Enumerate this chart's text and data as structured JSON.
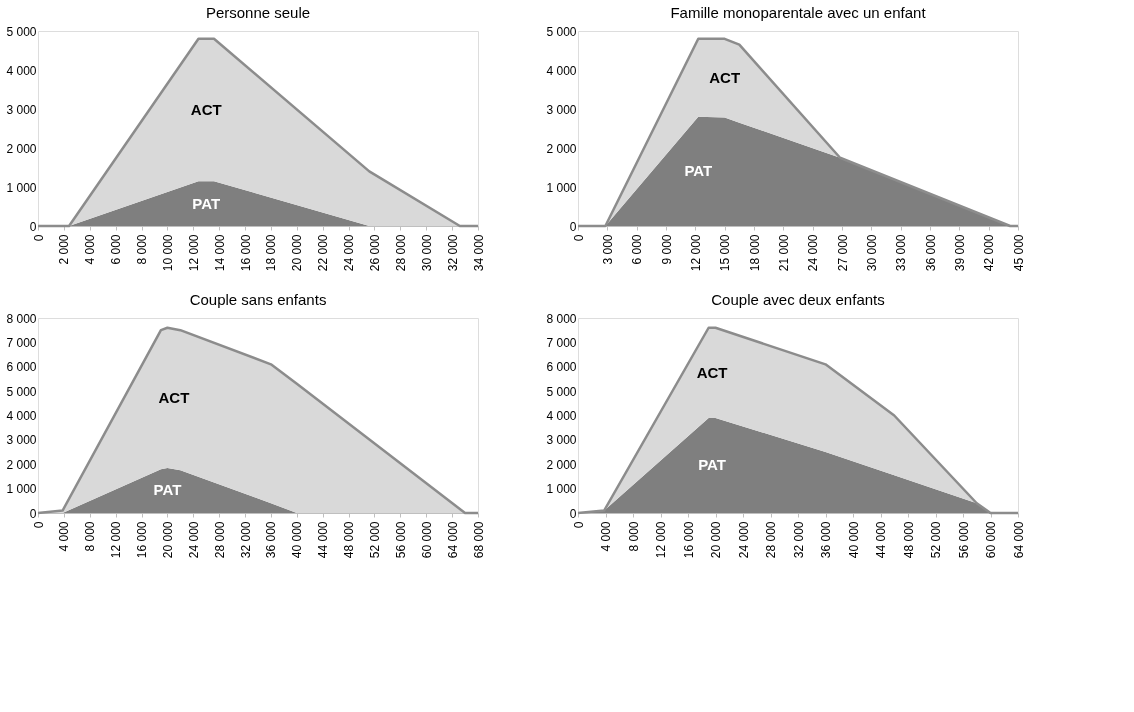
{
  "chart_data": [
    {
      "type": "area",
      "stacked": true,
      "title": "Personne seule",
      "legend": false,
      "grid": false,
      "x": [
        0,
        2400,
        12400,
        13600,
        25600,
        32600,
        34000
      ],
      "series": [
        {
          "name": "PAT",
          "color": "#7f7f7f",
          "values": [
            0,
            0,
            1150,
            1150,
            0,
            0,
            0
          ]
        },
        {
          "name": "ACT",
          "color": "#d9d9d9",
          "values": [
            0,
            0,
            3650,
            3650,
            1400,
            0,
            0
          ]
        }
      ],
      "xlim": [
        0,
        34000
      ],
      "xticks": [
        0,
        {
          "value": 2000,
          "label": "2 000"
        },
        {
          "value": 4000,
          "label": "4 000"
        },
        {
          "value": 6000,
          "label": "6 000"
        },
        {
          "value": 8000,
          "label": "8 000"
        },
        {
          "value": 10000,
          "label": "10 000"
        },
        {
          "value": 12000,
          "label": "12 000"
        },
        {
          "value": 14000,
          "label": "14 000"
        },
        {
          "value": 16000,
          "label": "16 000"
        },
        {
          "value": 18000,
          "label": "18 000"
        },
        {
          "value": 20000,
          "label": "20 000"
        },
        {
          "value": 22000,
          "label": "22 000"
        },
        {
          "value": 24000,
          "label": "24 000"
        },
        {
          "value": 26000,
          "label": "26 000"
        },
        {
          "value": 28000,
          "label": "28 000"
        },
        {
          "value": 30000,
          "label": "30 000"
        },
        {
          "value": 32000,
          "label": "32 000"
        },
        {
          "value": 34000,
          "label": "34 000"
        }
      ],
      "ylim": [
        0,
        5000
      ],
      "yticks": [
        0,
        {
          "value": 1000,
          "label": "1 000"
        },
        {
          "value": 2000,
          "label": "2 000"
        },
        {
          "value": 3000,
          "label": "3 000"
        },
        {
          "value": 4000,
          "label": "4 000"
        },
        {
          "value": 5000,
          "label": "5 000"
        }
      ]
    },
    {
      "type": "area",
      "stacked": true,
      "title": "Famille monoparentale avec un enfant",
      "legend": false,
      "grid": false,
      "x": [
        0,
        2800,
        12300,
        15000,
        16500,
        26800,
        44200,
        45000
      ],
      "series": [
        {
          "name": "PAT",
          "color": "#7f7f7f",
          "values": [
            0,
            0,
            2800,
            2780,
            2650,
            1750,
            0,
            0
          ]
        },
        {
          "name": "ACT",
          "color": "#d9d9d9",
          "values": [
            0,
            0,
            2000,
            2020,
            2000,
            0,
            0,
            0
          ]
        }
      ],
      "xlim": [
        0,
        45000
      ],
      "xticks": [
        0,
        {
          "value": 3000,
          "label": "3 000"
        },
        {
          "value": 6000,
          "label": "6 000"
        },
        {
          "value": 9000,
          "label": "9 000"
        },
        {
          "value": 12000,
          "label": "12 000"
        },
        {
          "value": 15000,
          "label": "15 000"
        },
        {
          "value": 18000,
          "label": "18 000"
        },
        {
          "value": 21000,
          "label": "21 000"
        },
        {
          "value": 24000,
          "label": "24 000"
        },
        {
          "value": 27000,
          "label": "27 000"
        },
        {
          "value": 30000,
          "label": "30 000"
        },
        {
          "value": 33000,
          "label": "33 000"
        },
        {
          "value": 36000,
          "label": "36 000"
        },
        {
          "value": 39000,
          "label": "39 000"
        },
        {
          "value": 42000,
          "label": "42 000"
        },
        {
          "value": 45000,
          "label": "45 000"
        }
      ],
      "ylim": [
        0,
        5000
      ],
      "yticks": [
        0,
        {
          "value": 1000,
          "label": "1 000"
        },
        {
          "value": 2000,
          "label": "2 000"
        },
        {
          "value": 3000,
          "label": "3 000"
        },
        {
          "value": 4000,
          "label": "4 000"
        },
        {
          "value": 5000,
          "label": "5 000"
        }
      ]
    },
    {
      "type": "area",
      "stacked": true,
      "title": "Couple sans enfants",
      "legend": false,
      "grid": false,
      "x": [
        0,
        3800,
        19000,
        20000,
        22000,
        36000,
        40000,
        66000,
        68000
      ],
      "series": [
        {
          "name": "PAT",
          "color": "#7f7f7f",
          "values": [
            0,
            0,
            1800,
            1850,
            1750,
            400,
            0,
            0,
            0
          ]
        },
        {
          "name": "ACT",
          "color": "#d9d9d9",
          "values": [
            0,
            100,
            5700,
            5750,
            5750,
            5700,
            5300,
            0,
            0
          ]
        }
      ],
      "xlim": [
        0,
        68000
      ],
      "xticks": [
        0,
        {
          "value": 4000,
          "label": "4 000"
        },
        {
          "value": 8000,
          "label": "8 000"
        },
        {
          "value": 12000,
          "label": "12 000"
        },
        {
          "value": 16000,
          "label": "16 000"
        },
        {
          "value": 20000,
          "label": "20 000"
        },
        {
          "value": 24000,
          "label": "24 000"
        },
        {
          "value": 28000,
          "label": "28 000"
        },
        {
          "value": 32000,
          "label": "32 000"
        },
        {
          "value": 36000,
          "label": "36 000"
        },
        {
          "value": 40000,
          "label": "40 000"
        },
        {
          "value": 44000,
          "label": "44 000"
        },
        {
          "value": 48000,
          "label": "48 000"
        },
        {
          "value": 52000,
          "label": "52 000"
        },
        {
          "value": 56000,
          "label": "56 000"
        },
        {
          "value": 60000,
          "label": "60 000"
        },
        {
          "value": 64000,
          "label": "64 000"
        },
        {
          "value": 68000,
          "label": "68 000"
        }
      ],
      "ylim": [
        0,
        8000
      ],
      "yticks": [
        0,
        {
          "value": 1000,
          "label": "1 000"
        },
        {
          "value": 2000,
          "label": "2 000"
        },
        {
          "value": 3000,
          "label": "3 000"
        },
        {
          "value": 4000,
          "label": "4 000"
        },
        {
          "value": 5000,
          "label": "5 000"
        },
        {
          "value": 6000,
          "label": "6 000"
        },
        {
          "value": 7000,
          "label": "7 000"
        },
        {
          "value": 8000,
          "label": "8 000"
        }
      ]
    },
    {
      "type": "area",
      "stacked": true,
      "title": "Couple avec deux enfants",
      "legend": false,
      "grid": false,
      "x": [
        0,
        3800,
        19000,
        20000,
        36000,
        46000,
        58000,
        60000,
        64000
      ],
      "series": [
        {
          "name": "PAT",
          "color": "#7f7f7f",
          "values": [
            0,
            100,
            3900,
            3900,
            2500,
            1550,
            400,
            0,
            0
          ]
        },
        {
          "name": "ACT",
          "color": "#d9d9d9",
          "values": [
            0,
            0,
            3700,
            3700,
            3600,
            2450,
            0,
            0,
            0
          ]
        }
      ],
      "xlim": [
        0,
        64000
      ],
      "xticks": [
        0,
        {
          "value": 4000,
          "label": "4 000"
        },
        {
          "value": 8000,
          "label": "8 000"
        },
        {
          "value": 12000,
          "label": "12 000"
        },
        {
          "value": 16000,
          "label": "16 000"
        },
        {
          "value": 20000,
          "label": "20 000"
        },
        {
          "value": 24000,
          "label": "24 000"
        },
        {
          "value": 28000,
          "label": "28 000"
        },
        {
          "value": 32000,
          "label": "32 000"
        },
        {
          "value": 36000,
          "label": "36 000"
        },
        {
          "value": 40000,
          "label": "40 000"
        },
        {
          "value": 44000,
          "label": "44 000"
        },
        {
          "value": 48000,
          "label": "48 000"
        },
        {
          "value": 52000,
          "label": "52 000"
        },
        {
          "value": 56000,
          "label": "56 000"
        },
        {
          "value": 60000,
          "label": "60 000"
        },
        {
          "value": 64000,
          "label": "64 000"
        }
      ],
      "ylim": [
        0,
        8000
      ],
      "yticks": [
        0,
        {
          "value": 1000,
          "label": "1 000"
        },
        {
          "value": 2000,
          "label": "2 000"
        },
        {
          "value": 3000,
          "label": "3 000"
        },
        {
          "value": 4000,
          "label": "4 000"
        },
        {
          "value": 5000,
          "label": "5 000"
        },
        {
          "value": 6000,
          "label": "6 000"
        },
        {
          "value": 7000,
          "label": "7 000"
        },
        {
          "value": 8000,
          "label": "8 000"
        }
      ]
    }
  ]
}
